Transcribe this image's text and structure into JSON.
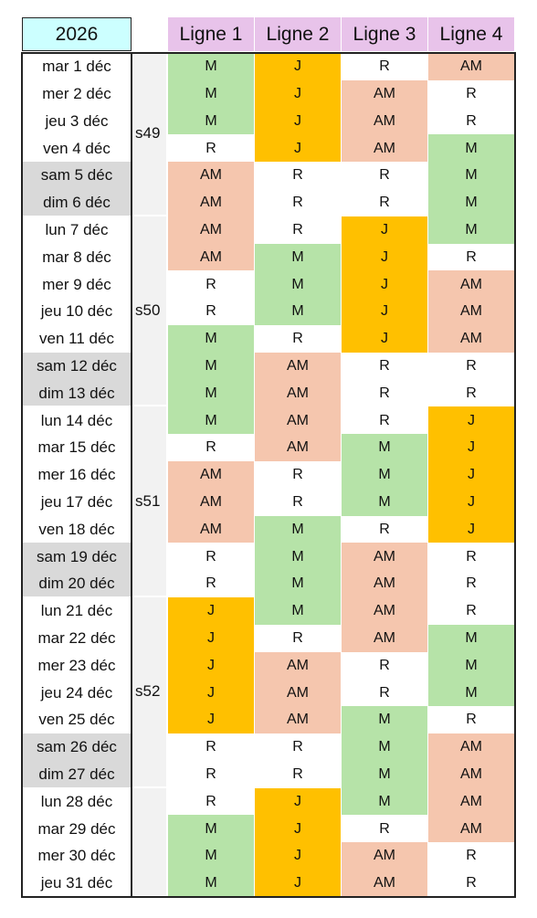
{
  "year": "2026",
  "line_headers": [
    "Ligne 1",
    "Ligne 2",
    "Ligne 3",
    "Ligne 4"
  ],
  "colors": {
    "M": "#b6e3a8",
    "J": "#ffc000",
    "AM": "#f5c6ae",
    "R": "#ffffff",
    "weekday_bg": "#ffffff",
    "weekend_bg": "#d9d9d9",
    "week_bg": "#f2f2f2",
    "header_year_bg": "#ccffff",
    "header_line_bg": "#e8c3ea"
  },
  "weeks": [
    {
      "label": "s49",
      "rows": [
        0,
        5
      ]
    },
    {
      "label": "s50",
      "rows": [
        6,
        12
      ]
    },
    {
      "label": "s51",
      "rows": [
        13,
        19
      ]
    },
    {
      "label": "s52",
      "rows": [
        20,
        26
      ]
    },
    {
      "label": "",
      "rows": [
        27,
        30
      ]
    }
  ],
  "rows": [
    {
      "day": "mar 1 déc",
      "weekend": false,
      "values": [
        "M",
        "J",
        "R",
        "AM"
      ]
    },
    {
      "day": "mer 2 déc",
      "weekend": false,
      "values": [
        "M",
        "J",
        "AM",
        "R"
      ]
    },
    {
      "day": "jeu 3 déc",
      "weekend": false,
      "values": [
        "M",
        "J",
        "AM",
        "R"
      ]
    },
    {
      "day": "ven 4 déc",
      "weekend": false,
      "values": [
        "R",
        "J",
        "AM",
        "M"
      ]
    },
    {
      "day": "sam 5 déc",
      "weekend": true,
      "values": [
        "AM",
        "R",
        "R",
        "M"
      ]
    },
    {
      "day": "dim 6 déc",
      "weekend": true,
      "values": [
        "AM",
        "R",
        "R",
        "M"
      ]
    },
    {
      "day": "lun 7 déc",
      "weekend": false,
      "values": [
        "AM",
        "R",
        "J",
        "M"
      ]
    },
    {
      "day": "mar 8 déc",
      "weekend": false,
      "values": [
        "AM",
        "M",
        "J",
        "R"
      ]
    },
    {
      "day": "mer 9 déc",
      "weekend": false,
      "values": [
        "R",
        "M",
        "J",
        "AM"
      ]
    },
    {
      "day": "jeu 10 déc",
      "weekend": false,
      "values": [
        "R",
        "M",
        "J",
        "AM"
      ]
    },
    {
      "day": "ven 11 déc",
      "weekend": false,
      "values": [
        "M",
        "R",
        "J",
        "AM"
      ]
    },
    {
      "day": "sam 12 déc",
      "weekend": true,
      "values": [
        "M",
        "AM",
        "R",
        "R"
      ]
    },
    {
      "day": "dim 13 déc",
      "weekend": true,
      "values": [
        "M",
        "AM",
        "R",
        "R"
      ]
    },
    {
      "day": "lun 14 déc",
      "weekend": false,
      "values": [
        "M",
        "AM",
        "R",
        "J"
      ]
    },
    {
      "day": "mar 15 déc",
      "weekend": false,
      "values": [
        "R",
        "AM",
        "M",
        "J"
      ]
    },
    {
      "day": "mer 16 déc",
      "weekend": false,
      "values": [
        "AM",
        "R",
        "M",
        "J"
      ]
    },
    {
      "day": "jeu 17 déc",
      "weekend": false,
      "values": [
        "AM",
        "R",
        "M",
        "J"
      ]
    },
    {
      "day": "ven 18 déc",
      "weekend": false,
      "values": [
        "AM",
        "M",
        "R",
        "J"
      ]
    },
    {
      "day": "sam 19 déc",
      "weekend": true,
      "values": [
        "R",
        "M",
        "AM",
        "R"
      ]
    },
    {
      "day": "dim 20 déc",
      "weekend": true,
      "values": [
        "R",
        "M",
        "AM",
        "R"
      ]
    },
    {
      "day": "lun 21 déc",
      "weekend": false,
      "values": [
        "J",
        "M",
        "AM",
        "R"
      ]
    },
    {
      "day": "mar 22 déc",
      "weekend": false,
      "values": [
        "J",
        "R",
        "AM",
        "M"
      ]
    },
    {
      "day": "mer 23 déc",
      "weekend": false,
      "values": [
        "J",
        "AM",
        "R",
        "M"
      ]
    },
    {
      "day": "jeu 24 déc",
      "weekend": false,
      "values": [
        "J",
        "AM",
        "R",
        "M"
      ]
    },
    {
      "day": "ven 25 déc",
      "weekend": false,
      "values": [
        "J",
        "AM",
        "M",
        "R"
      ]
    },
    {
      "day": "sam 26 déc",
      "weekend": true,
      "values": [
        "R",
        "R",
        "M",
        "AM"
      ]
    },
    {
      "day": "dim 27 déc",
      "weekend": true,
      "values": [
        "R",
        "R",
        "M",
        "AM"
      ]
    },
    {
      "day": "lun 28 déc",
      "weekend": false,
      "values": [
        "R",
        "J",
        "M",
        "AM"
      ]
    },
    {
      "day": "mar 29 déc",
      "weekend": false,
      "values": [
        "M",
        "J",
        "R",
        "AM"
      ]
    },
    {
      "day": "mer 30 déc",
      "weekend": false,
      "values": [
        "M",
        "J",
        "AM",
        "R"
      ]
    },
    {
      "day": "jeu 31 déc",
      "weekend": false,
      "values": [
        "M",
        "J",
        "AM",
        "R"
      ]
    }
  ]
}
